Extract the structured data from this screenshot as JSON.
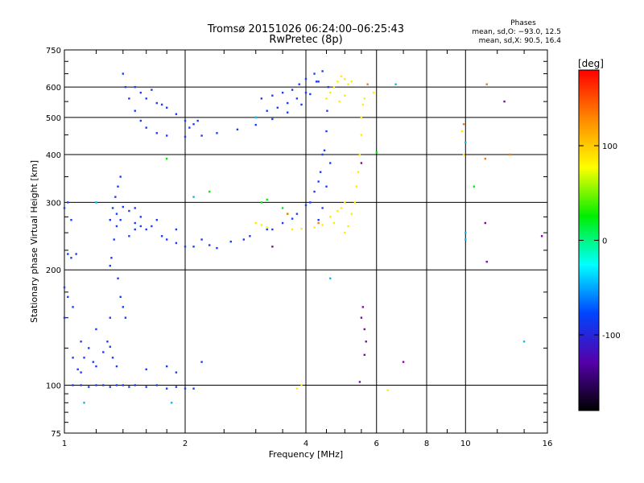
{
  "chart_data": {
    "type": "scatter",
    "title": "Tromsø 20151026 06:24:00–06:25:43",
    "subtitle": "RwPretec (8p)",
    "xlabel": "Frequency [MHz]",
    "ylabel": "Stationary phase Virtual Height [km]",
    "x_scale": "log",
    "y_scale": "log",
    "xlim": [
      1,
      16
    ],
    "ylim": [
      75,
      750
    ],
    "xticks": [
      1,
      2,
      4,
      6,
      8,
      10,
      16
    ],
    "yticks": [
      75,
      100,
      200,
      300,
      400,
      500,
      600,
      750
    ],
    "grid": true,
    "legend": {
      "header": "Phases",
      "line1": "mean, sd,O: −93.0, 12.5",
      "line2": "mean, sd,X:  90.5, 16.4"
    },
    "colorbar": {
      "label": "[deg]",
      "range": [
        -180,
        180
      ],
      "ticks": [
        100,
        0,
        -100
      ],
      "colors": [
        "#ff0000",
        "#ff8800",
        "#ffff00",
        "#00ee00",
        "#00ffff",
        "#0044ff",
        "#5500aa",
        "#000000"
      ]
    },
    "series": [
      {
        "color": "#1a3cff",
        "points": [
          [
            1.0,
            290
          ],
          [
            1.02,
            300
          ],
          [
            1.04,
            270
          ],
          [
            1.02,
            220
          ],
          [
            1.04,
            215
          ],
          [
            1.07,
            220
          ],
          [
            1.0,
            180
          ],
          [
            1.02,
            170
          ],
          [
            1.05,
            160
          ],
          [
            1.0,
            150
          ],
          [
            1.05,
            118
          ],
          [
            1.08,
            110
          ],
          [
            1.1,
            108
          ],
          [
            1.12,
            118
          ],
          [
            1.15,
            125
          ],
          [
            1.18,
            115
          ],
          [
            1.2,
            112
          ],
          [
            1.25,
            122
          ],
          [
            1.28,
            130
          ],
          [
            1.3,
            126
          ],
          [
            1.32,
            118
          ],
          [
            1.35,
            112
          ],
          [
            1.05,
            100
          ],
          [
            1.1,
            100
          ],
          [
            1.15,
            99
          ],
          [
            1.2,
            100
          ],
          [
            1.25,
            100
          ],
          [
            1.3,
            99
          ],
          [
            1.35,
            100
          ],
          [
            1.4,
            100
          ],
          [
            1.45,
            99
          ],
          [
            1.5,
            100
          ],
          [
            1.6,
            99
          ],
          [
            1.7,
            100
          ],
          [
            1.8,
            98
          ],
          [
            1.9,
            99
          ],
          [
            2.0,
            98
          ],
          [
            2.1,
            98
          ],
          [
            1.3,
            270
          ],
          [
            1.32,
            290
          ],
          [
            1.34,
            310
          ],
          [
            1.36,
            330
          ],
          [
            1.38,
            350
          ],
          [
            1.33,
            240
          ],
          [
            1.35,
            260
          ],
          [
            1.31,
            215
          ],
          [
            1.3,
            205
          ],
          [
            1.36,
            190
          ],
          [
            1.38,
            170
          ],
          [
            1.4,
            160
          ],
          [
            1.42,
            150
          ],
          [
            1.35,
            280
          ],
          [
            1.45,
            285
          ],
          [
            1.55,
            275
          ],
          [
            1.65,
            260
          ],
          [
            1.75,
            245
          ],
          [
            1.9,
            235
          ],
          [
            2.1,
            230
          ],
          [
            2.3,
            232
          ],
          [
            2.6,
            237
          ],
          [
            2.9,
            245
          ],
          [
            3.2,
            255
          ],
          [
            3.5,
            265
          ],
          [
            3.8,
            280
          ],
          [
            4.0,
            295
          ],
          [
            4.2,
            320
          ],
          [
            4.35,
            360
          ],
          [
            4.45,
            410
          ],
          [
            4.5,
            460
          ],
          [
            4.52,
            520
          ],
          [
            4.55,
            600
          ],
          [
            1.38,
            270
          ],
          [
            1.5,
            265
          ],
          [
            1.6,
            255
          ],
          [
            1.8,
            240
          ],
          [
            2.0,
            230
          ],
          [
            2.4,
            228
          ],
          [
            2.8,
            240
          ],
          [
            3.3,
            255
          ],
          [
            3.7,
            272
          ],
          [
            4.1,
            300
          ],
          [
            4.3,
            340
          ],
          [
            4.4,
            400
          ],
          [
            1.4,
            292
          ],
          [
            1.5,
            290
          ],
          [
            1.7,
            270
          ],
          [
            1.9,
            255
          ],
          [
            2.2,
            240
          ],
          [
            1.45,
            245
          ],
          [
            1.5,
            255
          ],
          [
            1.55,
            260
          ],
          [
            1.4,
            650
          ],
          [
            1.42,
            600
          ],
          [
            1.45,
            560
          ],
          [
            1.5,
            520
          ],
          [
            1.55,
            490
          ],
          [
            1.6,
            470
          ],
          [
            1.7,
            455
          ],
          [
            1.8,
            448
          ],
          [
            2.0,
            445
          ],
          [
            2.2,
            448
          ],
          [
            2.4,
            455
          ],
          [
            2.7,
            465
          ],
          [
            3.0,
            478
          ],
          [
            3.3,
            495
          ],
          [
            3.6,
            515
          ],
          [
            3.9,
            540
          ],
          [
            4.1,
            575
          ],
          [
            4.25,
            620
          ],
          [
            1.5,
            600
          ],
          [
            1.55,
            580
          ],
          [
            1.6,
            560
          ],
          [
            1.7,
            545
          ],
          [
            1.8,
            530
          ],
          [
            1.9,
            510
          ],
          [
            2.0,
            490
          ],
          [
            2.1,
            480
          ],
          [
            1.65,
            590
          ],
          [
            1.75,
            540
          ],
          [
            2.05,
            470
          ],
          [
            2.15,
            490
          ],
          [
            3.1,
            560
          ],
          [
            3.3,
            570
          ],
          [
            3.5,
            580
          ],
          [
            3.7,
            590
          ],
          [
            3.85,
            610
          ],
          [
            4.0,
            630
          ],
          [
            4.2,
            650
          ],
          [
            4.4,
            660
          ],
          [
            3.2,
            520
          ],
          [
            3.4,
            530
          ],
          [
            3.6,
            545
          ],
          [
            3.8,
            560
          ],
          [
            4.0,
            580
          ],
          [
            4.3,
            620
          ],
          [
            1.2,
            140
          ],
          [
            1.3,
            150
          ],
          [
            1.1,
            130
          ],
          [
            1.6,
            110
          ],
          [
            1.8,
            112
          ],
          [
            2.2,
            115
          ],
          [
            1.9,
            108
          ],
          [
            4.3,
            270
          ],
          [
            4.4,
            290
          ],
          [
            4.5,
            330
          ],
          [
            4.6,
            380
          ]
        ]
      },
      {
        "color": "#ffee00",
        "points": [
          [
            4.5,
            560
          ],
          [
            4.6,
            580
          ],
          [
            4.7,
            600
          ],
          [
            4.8,
            620
          ],
          [
            4.9,
            640
          ],
          [
            5.0,
            630
          ],
          [
            5.1,
            610
          ],
          [
            5.2,
            620
          ],
          [
            4.85,
            550
          ],
          [
            5.0,
            570
          ],
          [
            5.0,
            250
          ],
          [
            5.1,
            260
          ],
          [
            5.2,
            280
          ],
          [
            5.3,
            300
          ],
          [
            5.35,
            330
          ],
          [
            5.4,
            360
          ],
          [
            5.45,
            400
          ],
          [
            5.5,
            450
          ],
          [
            5.5,
            500
          ],
          [
            5.55,
            540
          ],
          [
            5.6,
            560
          ],
          [
            4.6,
            275
          ],
          [
            4.8,
            285
          ],
          [
            4.9,
            290
          ],
          [
            5.0,
            300
          ],
          [
            4.7,
            265
          ],
          [
            4.4,
            262
          ],
          [
            4.2,
            258
          ],
          [
            3.9,
            256
          ],
          [
            3.7,
            255
          ],
          [
            3.0,
            265
          ],
          [
            3.1,
            262
          ],
          [
            3.2,
            258
          ],
          [
            3.9,
            100
          ],
          [
            3.8,
            98
          ],
          [
            6.4,
            97
          ],
          [
            9.9,
            400
          ],
          [
            9.8,
            460
          ],
          [
            11.3,
            610
          ],
          [
            5.9,
            580
          ]
        ]
      },
      {
        "color": "#00ee00",
        "points": [
          [
            3.1,
            300
          ],
          [
            3.2,
            305
          ],
          [
            3.5,
            290
          ],
          [
            3.6,
            280
          ],
          [
            2.3,
            320
          ],
          [
            1.8,
            390
          ],
          [
            10.5,
            330
          ],
          [
            6.0,
            405
          ]
        ]
      },
      {
        "color": "#00bbee",
        "points": [
          [
            1.12,
            90
          ],
          [
            1.85,
            90
          ],
          [
            3.0,
            500
          ],
          [
            4.6,
            190
          ],
          [
            10.0,
            430
          ],
          [
            10.0,
            250
          ],
          [
            10.0,
            240
          ],
          [
            14.0,
            130
          ],
          [
            6.7,
            610
          ],
          [
            2.1,
            310
          ],
          [
            1.2,
            300
          ]
        ]
      },
      {
        "color": "#ff7700",
        "points": [
          [
            9.9,
            480
          ],
          [
            11.2,
            390
          ],
          [
            11.3,
            610
          ],
          [
            12.9,
            400
          ],
          [
            3.6,
            280
          ],
          [
            4.3,
            265
          ],
          [
            5.7,
            610
          ]
        ]
      },
      {
        "color": "#8800aa",
        "points": [
          [
            5.6,
            140
          ],
          [
            5.65,
            130
          ],
          [
            5.5,
            150
          ],
          [
            5.55,
            160
          ],
          [
            5.6,
            120
          ],
          [
            5.45,
            102
          ],
          [
            7.0,
            115
          ],
          [
            12.5,
            550
          ],
          [
            15.5,
            245
          ],
          [
            11.3,
            210
          ],
          [
            11.2,
            265
          ],
          [
            3.3,
            230
          ],
          [
            5.5,
            380
          ]
        ]
      }
    ]
  }
}
